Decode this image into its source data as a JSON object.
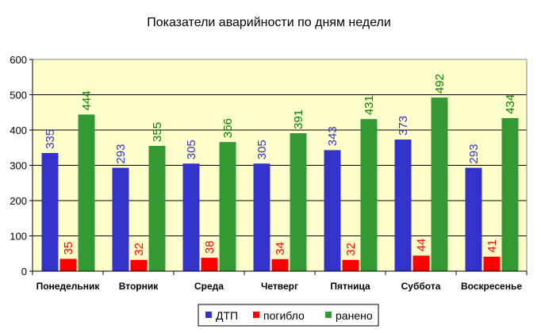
{
  "chart_data": {
    "type": "bar",
    "title": "Показатели аварийности по дням недели",
    "categories": [
      "Понедельник",
      "Вторник",
      "Среда",
      "Четверг",
      "Пятница",
      "Суббота",
      "Воскресенье"
    ],
    "series": [
      {
        "name": "ДТП",
        "color": "#3333cc",
        "label_color": "#3333cc",
        "values": [
          335,
          293,
          305,
          305,
          343,
          373,
          293
        ]
      },
      {
        "name": "погибло",
        "color": "#ff0000",
        "label_color": "#ff0000",
        "values": [
          35,
          32,
          38,
          34,
          32,
          44,
          41
        ]
      },
      {
        "name": "ранено",
        "color": "#339933",
        "label_color": "#008000",
        "values": [
          444,
          355,
          366,
          391,
          431,
          492,
          434
        ]
      }
    ],
    "ylim": [
      0,
      600
    ],
    "yticks": [
      0,
      100,
      200,
      300,
      400,
      500,
      600
    ],
    "grid": true,
    "legend": "bottom",
    "plot_background": "#ffffcc"
  }
}
